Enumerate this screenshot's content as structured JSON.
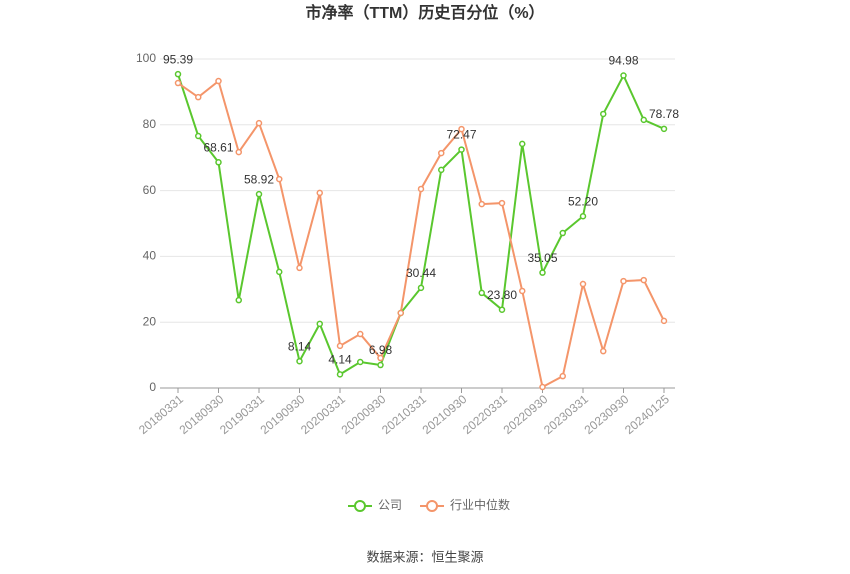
{
  "chart_data": {
    "type": "line",
    "title": "市净率（TTM）历史百分位（%）",
    "source": "数据来源：恒生聚源",
    "categories": [
      "20180331",
      null,
      "20180930",
      null,
      "20190331",
      null,
      "20190930",
      null,
      "20200331",
      null,
      "20200930",
      null,
      "20210331",
      null,
      "20210930",
      null,
      "20220331",
      null,
      "20220930",
      null,
      "20230331",
      null,
      "20230930",
      null,
      "20240125"
    ],
    "series": [
      {
        "name": "公司",
        "color": "#5ac72e",
        "values": [
          95.39,
          76.6,
          68.61,
          26.7,
          58.92,
          35.3,
          8.14,
          19.5,
          4.14,
          7.9,
          6.98,
          22.8,
          30.44,
          66.3,
          72.47,
          28.9,
          23.8,
          74.2,
          35.05,
          47.1,
          52.2,
          83.3,
          94.98,
          81.5,
          78.78
        ],
        "value_labels": [
          "95.39",
          null,
          "68.61",
          null,
          "58.92",
          null,
          "8.14",
          null,
          "4.14",
          null,
          "6.98",
          null,
          "30.44",
          null,
          "72.47",
          null,
          "23.80",
          null,
          "35.05",
          null,
          "52.20",
          null,
          "94.98",
          null,
          "78.78"
        ]
      },
      {
        "name": "行业中位数",
        "color": "#f4956a",
        "values": [
          92.7,
          88.4,
          93.3,
          71.7,
          80.5,
          63.5,
          36.5,
          59.3,
          12.8,
          16.4,
          9.1,
          22.8,
          60.5,
          71.4,
          78.7,
          55.9,
          56.2,
          29.5,
          0.3,
          3.6,
          31.6,
          11.2,
          32.5,
          32.8,
          20.4
        ]
      }
    ],
    "ylim": [
      0,
      100
    ],
    "yticks": [
      0,
      20,
      40,
      60,
      80,
      100
    ],
    "grid": true
  }
}
